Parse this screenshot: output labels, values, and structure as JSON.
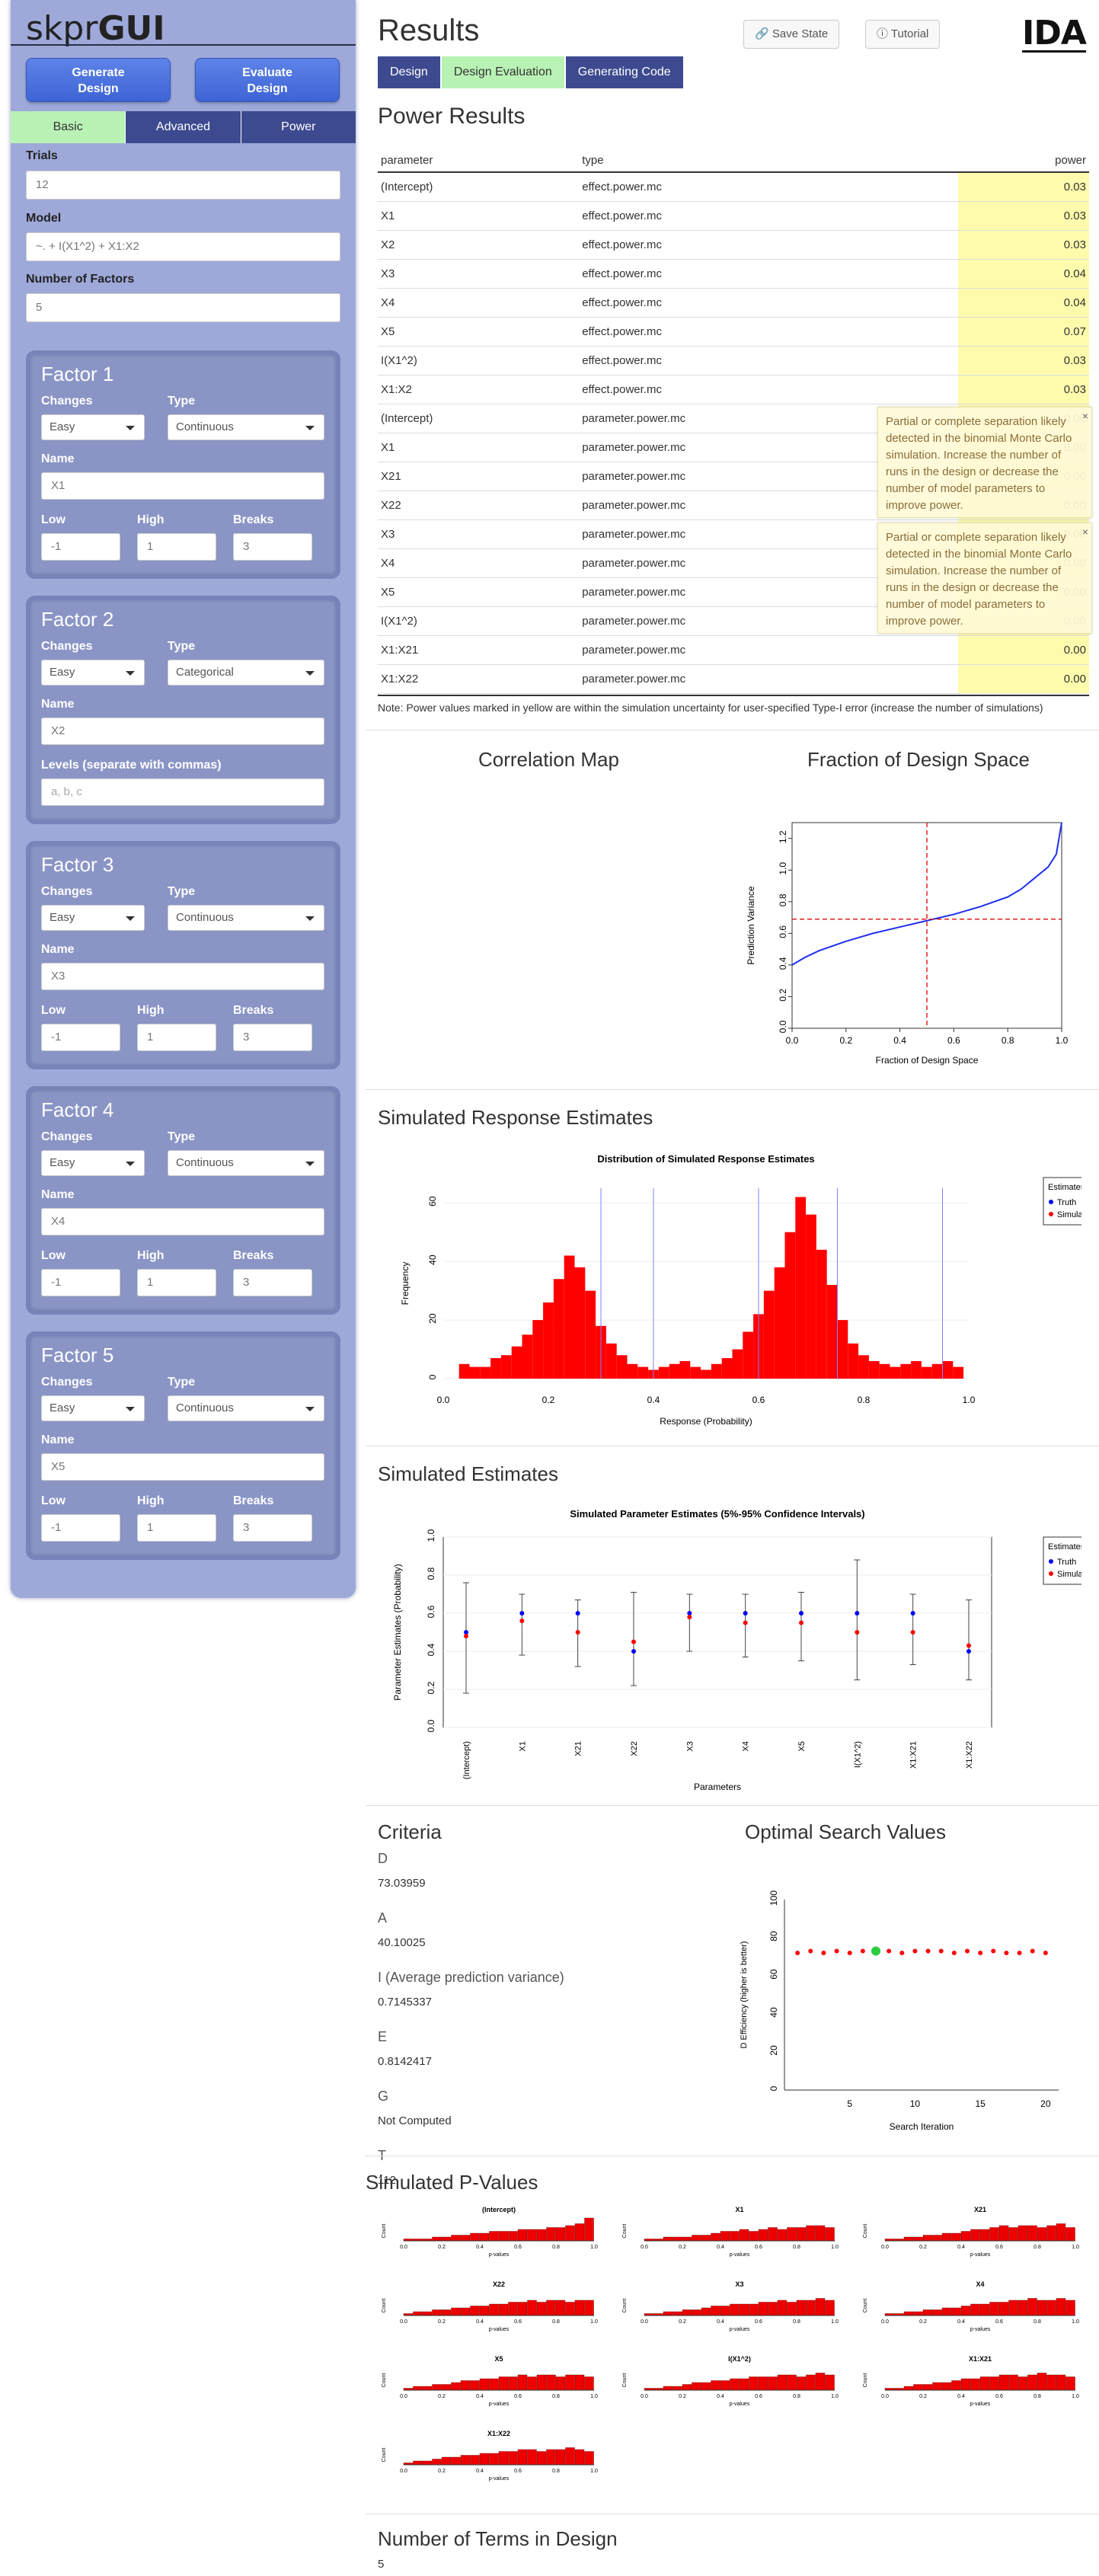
{
  "sidebar": {
    "logo_light": "skpr",
    "logo_bold": "GUI",
    "generate_label": "Generate\nDesign",
    "evaluate_label": "Evaluate\nDesign",
    "tabs": [
      "Basic",
      "Advanced",
      "Power"
    ],
    "trials_label": "Trials",
    "trials_value": "12",
    "model_label": "Model",
    "model_value": "~. + I(X1^2) + X1:X2",
    "nfactors_label": "Number of Factors",
    "nfactors_value": "5",
    "factors": [
      {
        "title": "Factor 1",
        "changes": "Easy",
        "type": "Continuous",
        "name": "X1",
        "low": "-1",
        "high": "1",
        "breaks": "3"
      },
      {
        "title": "Factor 2",
        "changes": "Easy",
        "type": "Categorical",
        "name": "X2",
        "levels_label": "Levels (separate with commas)",
        "levels_placeholder": "a, b, c"
      },
      {
        "title": "Factor 3",
        "changes": "Easy",
        "type": "Continuous",
        "name": "X3",
        "low": "-1",
        "high": "1",
        "breaks": "3"
      },
      {
        "title": "Factor 4",
        "changes": "Easy",
        "type": "Continuous",
        "name": "X4",
        "low": "-1",
        "high": "1",
        "breaks": "3"
      },
      {
        "title": "Factor 5",
        "changes": "Easy",
        "type": "Continuous",
        "name": "X5",
        "low": "-1",
        "high": "1",
        "breaks": "3"
      }
    ],
    "labels": {
      "changes": "Changes",
      "type": "Type",
      "name": "Name",
      "low": "Low",
      "high": "High",
      "breaks": "Breaks"
    }
  },
  "header": {
    "title": "Results",
    "save_state": "Save State",
    "tutorial": "Tutorial",
    "brand": "IDA",
    "tabs": [
      "Design",
      "Design Evaluation",
      "Generating Code"
    ]
  },
  "power": {
    "title": "Power Results",
    "columns": [
      "parameter",
      "type",
      "power"
    ],
    "rows": [
      [
        "(Intercept)",
        "effect.power.mc",
        "0.03"
      ],
      [
        "X1",
        "effect.power.mc",
        "0.03"
      ],
      [
        "X2",
        "effect.power.mc",
        "0.03"
      ],
      [
        "X3",
        "effect.power.mc",
        "0.04"
      ],
      [
        "X4",
        "effect.power.mc",
        "0.04"
      ],
      [
        "X5",
        "effect.power.mc",
        "0.07"
      ],
      [
        "I(X1^2)",
        "effect.power.mc",
        "0.03"
      ],
      [
        "X1:X2",
        "effect.power.mc",
        "0.03"
      ],
      [
        "(Intercept)",
        "parameter.power.mc",
        "0.00"
      ],
      [
        "X1",
        "parameter.power.mc",
        "0.00"
      ],
      [
        "X21",
        "parameter.power.mc",
        "0.00"
      ],
      [
        "X22",
        "parameter.power.mc",
        "0.00"
      ],
      [
        "X3",
        "parameter.power.mc",
        "0.00"
      ],
      [
        "X4",
        "parameter.power.mc",
        "0.00"
      ],
      [
        "X5",
        "parameter.power.mc",
        "0.00"
      ],
      [
        "I(X1^2)",
        "parameter.power.mc",
        "0.00"
      ],
      [
        "X1:X21",
        "parameter.power.mc",
        "0.00"
      ],
      [
        "X1:X22",
        "parameter.power.mc",
        "0.00"
      ]
    ],
    "note": "Note: Power values marked in yellow are within the simulation uncertainty for user-specified Type-I error (increase the number of simulations)",
    "warning": "Partial or complete separation likely detected in the binomial Monte Carlo simulation. Increase the number of runs in the design or decrease the number of model parameters to improve power.",
    "close": "×"
  },
  "correlation": {
    "title": "Correlation Map"
  },
  "fds": {
    "title": "Fraction of Design Space"
  },
  "response": {
    "title": "Simulated Response Estimates"
  },
  "estimates": {
    "title": "Simulated Estimates"
  },
  "criteria": {
    "title": "Criteria",
    "items": [
      {
        "label": "D",
        "value": "73.03959"
      },
      {
        "label": "A",
        "value": "40.10025"
      },
      {
        "label": "I (Average prediction variance)",
        "value": "0.7145337"
      },
      {
        "label": "E",
        "value": "0.8142417"
      },
      {
        "label": "G",
        "value": "Not Computed"
      },
      {
        "label": "T",
        "value": "112"
      }
    ]
  },
  "search": {
    "title": "Optimal Search Values"
  },
  "pvalues": {
    "title": "Simulated P-Values"
  },
  "nterms": {
    "title": "Number of Terms in Design",
    "value": "5"
  },
  "chart_data": [
    {
      "type": "line",
      "title": "",
      "xlabel": "Fraction of Design Space",
      "ylabel": "Prediction Variance",
      "xlim": [
        0,
        1
      ],
      "ylim": [
        0,
        1.3
      ],
      "xticks": [
        "0.0",
        "0.2",
        "0.4",
        "0.6",
        "0.8",
        "1.0"
      ],
      "yticks": [
        "0.0",
        "0.2",
        "0.4",
        "0.6",
        "0.8",
        "1.0",
        "1.2"
      ],
      "x": [
        0,
        0.05,
        0.1,
        0.2,
        0.3,
        0.4,
        0.5,
        0.6,
        0.7,
        0.8,
        0.85,
        0.9,
        0.95,
        0.98,
        1.0
      ],
      "y": [
        0.4,
        0.45,
        0.49,
        0.55,
        0.6,
        0.64,
        0.68,
        0.72,
        0.77,
        0.83,
        0.88,
        0.95,
        1.02,
        1.1,
        1.3
      ],
      "ref_x": 0.5,
      "ref_y": 0.69
    },
    {
      "type": "bar",
      "title": "Distribution of Simulated Response Estimates",
      "xlabel": "Response (Probability)",
      "ylabel": "Frequency",
      "xlim": [
        0,
        1
      ],
      "ylim": [
        0,
        65
      ],
      "xticks": [
        "0.0",
        "0.2",
        "0.4",
        "0.6",
        "0.8",
        "1.0"
      ],
      "yticks": [
        "0",
        "20",
        "40",
        "60"
      ],
      "legend_title": "Estimates",
      "legend": [
        "Truth",
        "Simulated"
      ],
      "vlines": [
        0.3,
        0.4,
        0.6,
        0.75,
        0.95
      ],
      "bins": [
        0.04,
        0.06,
        0.08,
        0.1,
        0.12,
        0.14,
        0.16,
        0.18,
        0.2,
        0.22,
        0.24,
        0.26,
        0.28,
        0.3,
        0.32,
        0.34,
        0.36,
        0.38,
        0.4,
        0.42,
        0.44,
        0.46,
        0.48,
        0.5,
        0.52,
        0.54,
        0.56,
        0.58,
        0.6,
        0.62,
        0.64,
        0.66,
        0.68,
        0.7,
        0.72,
        0.74,
        0.76,
        0.78,
        0.8,
        0.82,
        0.84,
        0.86,
        0.88,
        0.9,
        0.92,
        0.94,
        0.96,
        0.98
      ],
      "values": [
        5,
        4,
        4,
        7,
        8,
        11,
        15,
        20,
        26,
        34,
        42,
        38,
        30,
        18,
        12,
        8,
        5,
        4,
        3,
        4,
        5,
        6,
        4,
        3,
        5,
        7,
        10,
        16,
        22,
        30,
        38,
        50,
        62,
        56,
        44,
        32,
        20,
        12,
        8,
        6,
        5,
        4,
        5,
        6,
        4,
        5,
        6,
        4
      ]
    },
    {
      "type": "scatter",
      "title": "Simulated Parameter Estimates (5%-95% Confidence Intervals)",
      "xlabel": "Parameters",
      "ylabel": "Parameter Estimates (Probability)",
      "ylim": [
        0,
        1
      ],
      "yticks": [
        "0.0",
        "0.2",
        "0.4",
        "0.6",
        "0.8",
        "1.0"
      ],
      "legend_title": "Estimates",
      "legend": [
        "Truth",
        "Simulated"
      ],
      "categories": [
        "(Intercept)",
        "X1",
        "X21",
        "X22",
        "X3",
        "X4",
        "X5",
        "I(X1^2)",
        "X1:X21",
        "X1:X22"
      ],
      "truth": [
        0.5,
        0.6,
        0.6,
        0.4,
        0.6,
        0.6,
        0.6,
        0.6,
        0.6,
        0.4
      ],
      "sim": [
        0.48,
        0.56,
        0.5,
        0.45,
        0.58,
        0.55,
        0.55,
        0.5,
        0.5,
        0.43
      ],
      "low": [
        0.18,
        0.38,
        0.32,
        0.22,
        0.4,
        0.37,
        0.35,
        0.25,
        0.33,
        0.25
      ],
      "high": [
        0.76,
        0.7,
        0.67,
        0.71,
        0.7,
        0.7,
        0.71,
        0.88,
        0.7,
        0.67
      ]
    },
    {
      "type": "scatter",
      "title": "",
      "xlabel": "Search Iteration",
      "ylabel": "D Efficiency (higher is better)",
      "xlim": [
        0,
        21
      ],
      "ylim": [
        0,
        100
      ],
      "xticks": [
        "5",
        "10",
        "15",
        "20"
      ],
      "yticks": [
        "0",
        "20",
        "40",
        "60",
        "80",
        "100"
      ],
      "x": [
        1,
        2,
        3,
        4,
        5,
        6,
        7,
        8,
        9,
        10,
        11,
        12,
        13,
        14,
        15,
        16,
        17,
        18,
        19,
        20
      ],
      "y": [
        72,
        73,
        72,
        73,
        72,
        73,
        73,
        73,
        72,
        73,
        73,
        73,
        72,
        73,
        72,
        73,
        72,
        72,
        73,
        72
      ],
      "best": 7
    },
    {
      "type": "bar",
      "title": "Simulated P-Values",
      "panels": [
        "(Intercept)",
        "X1",
        "X21",
        "X22",
        "X3",
        "X4",
        "X5",
        "I(X1^2)",
        "X1:X21",
        "X1:X22"
      ],
      "xticks": [
        "0.0",
        "0.2",
        "0.4",
        "0.6",
        "0.8",
        "1.0"
      ],
      "ylabel": "Count",
      "xlabel": "p-values",
      "values": [
        [
          1,
          1,
          1,
          2,
          2,
          3,
          3,
          4,
          4,
          5,
          5,
          5,
          6,
          6,
          6,
          7,
          7,
          8,
          9,
          12
        ],
        [
          1,
          1,
          2,
          2,
          2,
          3,
          3,
          4,
          5,
          5,
          6,
          5,
          6,
          7,
          6,
          7,
          7,
          8,
          8,
          7
        ],
        [
          1,
          1,
          2,
          2,
          3,
          3,
          4,
          4,
          5,
          6,
          6,
          7,
          8,
          7,
          8,
          8,
          7,
          8,
          9,
          7
        ],
        [
          1,
          2,
          2,
          3,
          3,
          4,
          4,
          5,
          5,
          6,
          6,
          7,
          7,
          8,
          7,
          8,
          8,
          7,
          8,
          8
        ],
        [
          1,
          1,
          2,
          2,
          3,
          3,
          4,
          5,
          5,
          6,
          6,
          6,
          7,
          7,
          8,
          7,
          8,
          8,
          9,
          8
        ],
        [
          1,
          1,
          2,
          2,
          3,
          3,
          4,
          4,
          5,
          6,
          6,
          7,
          7,
          8,
          8,
          9,
          8,
          8,
          9,
          8
        ],
        [
          1,
          2,
          2,
          3,
          3,
          4,
          5,
          5,
          6,
          6,
          7,
          7,
          8,
          7,
          8,
          8,
          7,
          8,
          8,
          7
        ],
        [
          1,
          1,
          2,
          2,
          3,
          4,
          4,
          5,
          5,
          6,
          6,
          7,
          7,
          7,
          8,
          8,
          7,
          8,
          9,
          8
        ],
        [
          1,
          1,
          2,
          3,
          3,
          4,
          4,
          5,
          6,
          6,
          7,
          7,
          8,
          8,
          7,
          8,
          9,
          8,
          8,
          7
        ],
        [
          1,
          2,
          2,
          3,
          4,
          4,
          5,
          5,
          6,
          6,
          7,
          7,
          8,
          8,
          7,
          8,
          8,
          9,
          8,
          7
        ]
      ]
    }
  ]
}
